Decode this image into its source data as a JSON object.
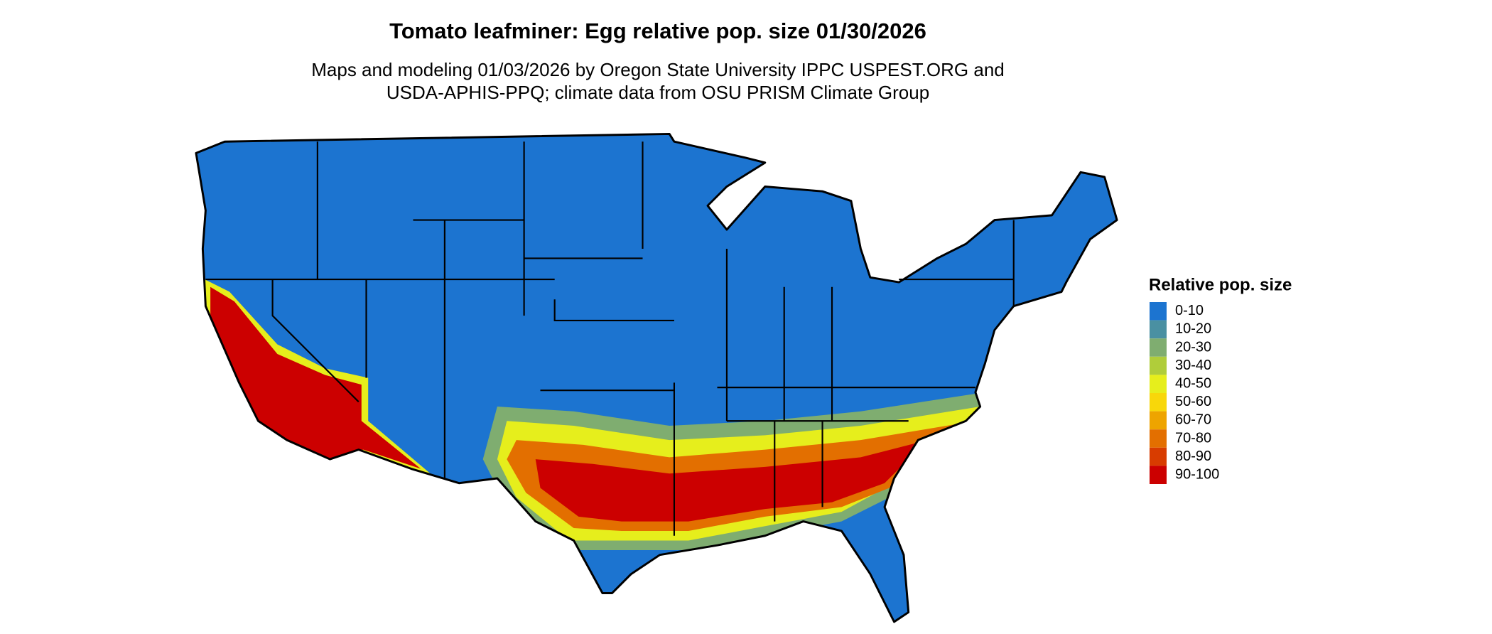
{
  "title": "Tomato leafminer: Egg relative pop. size 01/30/2026",
  "subtitle": [
    "Maps and modeling 01/03/2026 by Oregon State University IPPC USPEST.ORG and",
    "USDA-APHIS-PPQ; climate data from OSU PRISM Climate Group"
  ],
  "legend": {
    "title": "Relative pop. size",
    "items": [
      {
        "label": "0-10",
        "color": "#1c74d0"
      },
      {
        "label": "10-20",
        "color": "#4a90a2"
      },
      {
        "label": "20-30",
        "color": "#7fad70"
      },
      {
        "label": "30-40",
        "color": "#b0cd3a"
      },
      {
        "label": "40-50",
        "color": "#e6ee1c"
      },
      {
        "label": "50-60",
        "color": "#f8d70a"
      },
      {
        "label": "60-70",
        "color": "#eea400"
      },
      {
        "label": "70-80",
        "color": "#e36f00"
      },
      {
        "label": "80-90",
        "color": "#d83c00"
      },
      {
        "label": "90-100",
        "color": "#cc0000"
      }
    ]
  }
}
